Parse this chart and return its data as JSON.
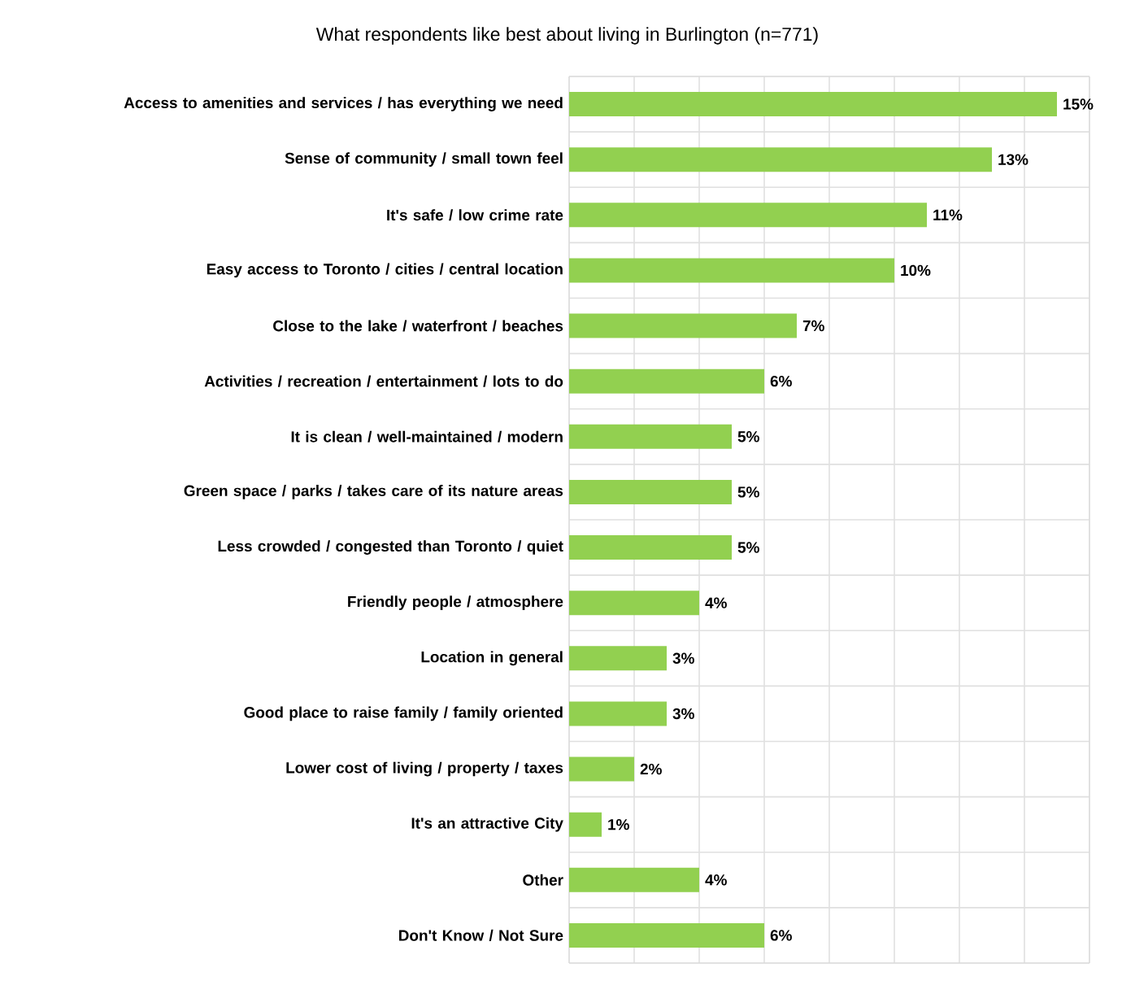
{
  "chart_data": {
    "type": "bar",
    "orientation": "horizontal",
    "title": "What respondents like best about living in Burlington (n=771)",
    "categories": [
      "Access to amenities and services / has everything we need",
      "Sense of community / small town feel",
      "It's safe / low crime rate",
      "Easy access to Toronto / cities / central location",
      "Close to the lake / waterfront / beaches",
      "Activities / recreation / entertainment / lots to do",
      "It is clean / well-maintained / modern",
      "Green space / parks / takes care of its nature areas",
      "Less crowded / congested than Toronto / quiet",
      "Friendly people / atmosphere",
      "Location in general",
      "Good place to raise family / family oriented",
      "Lower cost of living / property / taxes",
      "It's an attractive City",
      "Other",
      "Don't Know / Not Sure"
    ],
    "values": [
      15,
      13,
      11,
      10,
      7,
      6,
      5,
      5,
      5,
      4,
      3,
      3,
      2,
      1,
      4,
      6
    ],
    "value_labels": [
      "15%",
      "13%",
      "11%",
      "10%",
      "7%",
      "6%",
      "5%",
      "5%",
      "5%",
      "4%",
      "3%",
      "3%",
      "2%",
      "1%",
      "4%",
      "6%"
    ],
    "color": "#92d050",
    "xlim": [
      0,
      16
    ],
    "xticks": [
      {
        "value": 0,
        "label": null
      },
      {
        "value": 2,
        "label": null
      },
      {
        "value": 4,
        "label": null
      },
      {
        "value": 6,
        "label": null
      },
      {
        "value": 8,
        "label": null
      },
      {
        "value": 10,
        "label": null
      },
      {
        "value": 12,
        "label": null
      },
      {
        "value": 14,
        "label": null
      },
      {
        "value": 16,
        "label": null
      }
    ],
    "grid": true,
    "tick_labels": "y"
  }
}
